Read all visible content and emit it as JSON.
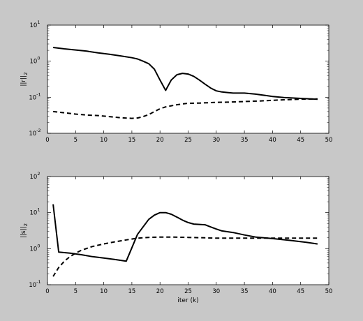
{
  "chart_data": [
    {
      "type": "line",
      "ylabel": "||r||",
      "ylabel_sub": "2",
      "xlabel": "",
      "xlim": [
        0,
        50
      ],
      "ylim": [
        0.01,
        10
      ],
      "yscale": "log",
      "grid": false,
      "xticks": [
        "0",
        "5",
        "10",
        "15",
        "20",
        "25",
        "30",
        "35",
        "40",
        "45",
        "50"
      ],
      "yticks": [
        {
          "base": "10",
          "exp": "-2"
        },
        {
          "base": "10",
          "exp": "-1"
        },
        {
          "base": "10",
          "exp": "0"
        },
        {
          "base": "10",
          "exp": "1"
        }
      ],
      "series": [
        {
          "style": "solid",
          "x": [
            1,
            3,
            5,
            7,
            9,
            11,
            13,
            15,
            16,
            17,
            18,
            19,
            20,
            21,
            22,
            23,
            24,
            25,
            26,
            27,
            28,
            29,
            30,
            31,
            32,
            33,
            35,
            37,
            40,
            42,
            45,
            48
          ],
          "y": [
            2.4,
            2.2,
            2.05,
            1.9,
            1.7,
            1.55,
            1.4,
            1.25,
            1.15,
            1.0,
            0.85,
            0.6,
            0.3,
            0.155,
            0.3,
            0.42,
            0.46,
            0.44,
            0.38,
            0.3,
            0.23,
            0.18,
            0.15,
            0.14,
            0.135,
            0.13,
            0.13,
            0.122,
            0.105,
            0.098,
            0.093,
            0.088
          ]
        },
        {
          "style": "dashed",
          "x": [
            1,
            3,
            5,
            7,
            9,
            11,
            13,
            15,
            16,
            17,
            18,
            19,
            20,
            21,
            22,
            23,
            24,
            25,
            27,
            30,
            32,
            35,
            38,
            40,
            42,
            45,
            48
          ],
          "y": [
            0.04,
            0.037,
            0.034,
            0.032,
            0.031,
            0.029,
            0.027,
            0.026,
            0.0265,
            0.029,
            0.033,
            0.04,
            0.048,
            0.054,
            0.058,
            0.062,
            0.065,
            0.068,
            0.069,
            0.072,
            0.073,
            0.076,
            0.079,
            0.082,
            0.085,
            0.088,
            0.09
          ]
        }
      ]
    },
    {
      "type": "line",
      "ylabel": "||s||",
      "ylabel_sub": "2",
      "xlabel": "iter (k)",
      "xlim": [
        0,
        50
      ],
      "ylim": [
        0.1,
        100
      ],
      "yscale": "log",
      "grid": false,
      "xticks": [
        "0",
        "5",
        "10",
        "15",
        "20",
        "25",
        "30",
        "35",
        "40",
        "45",
        "50"
      ],
      "yticks": [
        {
          "base": "10",
          "exp": "-1"
        },
        {
          "base": "10",
          "exp": "0"
        },
        {
          "base": "10",
          "exp": "1"
        },
        {
          "base": "10",
          "exp": "2"
        }
      ],
      "series": [
        {
          "style": "solid",
          "x": [
            1,
            2,
            4,
            6,
            8,
            10,
            12,
            14,
            16,
            18,
            19,
            20,
            21,
            22,
            23,
            24,
            25,
            26,
            27,
            28,
            29,
            30,
            31,
            33,
            35,
            37,
            40,
            43,
            46,
            48
          ],
          "y": [
            17,
            0.8,
            0.75,
            0.68,
            0.6,
            0.55,
            0.5,
            0.45,
            2.5,
            6.5,
            8.5,
            10,
            10,
            9,
            7.5,
            6.2,
            5.3,
            4.8,
            4.7,
            4.6,
            4.0,
            3.5,
            3.1,
            2.8,
            2.4,
            2.1,
            1.9,
            1.7,
            1.5,
            1.35
          ]
        },
        {
          "style": "dashed",
          "x": [
            1,
            2,
            3,
            4,
            5,
            6,
            8,
            10,
            12,
            14,
            16,
            18,
            20,
            22,
            25,
            28,
            30,
            35,
            40,
            45,
            48
          ],
          "y": [
            0.17,
            0.3,
            0.45,
            0.6,
            0.75,
            0.9,
            1.15,
            1.35,
            1.55,
            1.75,
            1.95,
            2.05,
            2.1,
            2.1,
            2.05,
            2.0,
            1.95,
            1.95,
            1.95,
            1.95,
            1.95
          ]
        }
      ]
    }
  ]
}
